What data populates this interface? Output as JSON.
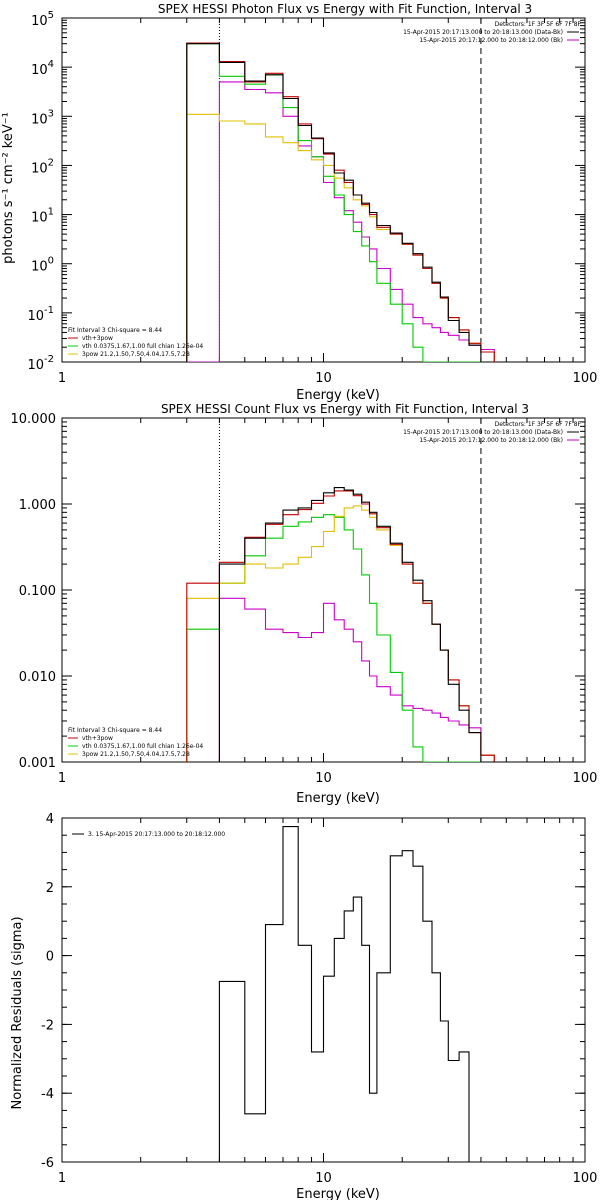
{
  "colors": {
    "total": "#c00000",
    "thermal": "#00cc00",
    "powerlaw": "#e0c000",
    "background": "#cc00cc",
    "data": "#000000",
    "axis": "#000000"
  },
  "chart_data": [
    {
      "type": "line",
      "title": "SPEX HESSI Photon Flux vs Energy with Fit Function, Interval 3",
      "xlabel": "Energy (keV)",
      "ylabel": "photons s⁻¹ cm⁻² keV⁻¹",
      "xscale": "log",
      "yscale": "log",
      "xlim": [
        1,
        100
      ],
      "ylim": [
        0.01,
        100000
      ],
      "xticks": [
        {
          "v": 1,
          "label": "1"
        },
        {
          "v": 10,
          "label": "10"
        },
        {
          "v": 100,
          "label": "100"
        }
      ],
      "yticks": [
        {
          "v": 0.01,
          "base": "10",
          "exp": "-2"
        },
        {
          "v": 0.1,
          "base": "10",
          "exp": "-1"
        },
        {
          "v": 1,
          "base": "10",
          "exp": "0"
        },
        {
          "v": 10,
          "base": "10",
          "exp": "1"
        },
        {
          "v": 100,
          "base": "10",
          "exp": "2"
        },
        {
          "v": 1000,
          "base": "10",
          "exp": "3"
        },
        {
          "v": 10000,
          "base": "10",
          "exp": "4"
        },
        {
          "v": 100000,
          "base": "10",
          "exp": "5"
        }
      ],
      "vlines": [
        {
          "x": 4.0,
          "style": "dotted"
        },
        {
          "x": 40.0,
          "style": "dashed"
        }
      ],
      "legend_top": {
        "header": "Detectors: 1F 3F 5F 6F 7F 8F",
        "entries": [
          {
            "text": "15-Apr-2015 20:17:13.000 to 20:18:13.000 (Data-Bk)",
            "color": "data"
          },
          {
            "text": "15-Apr-2015 20:17:12.000 to 20:18:12.000 (Bk)",
            "color": "background"
          }
        ]
      },
      "legend_bottom": {
        "header": "Fit Interval 3   Chi-square = 8.44",
        "entries": [
          {
            "text": "vth+3pow",
            "color": "total"
          },
          {
            "text": "vth 0.0375,1.67,1.00  full chian 1.26e-04",
            "color": "thermal"
          },
          {
            "text": "3pow 21.2,1.50,7.50,4.04,17.5,7.28",
            "color": "powerlaw"
          }
        ]
      },
      "edges": [
        3,
        4,
        5,
        6,
        7,
        8,
        9,
        10,
        11,
        12,
        13,
        14,
        15,
        16,
        18,
        20,
        22,
        24,
        26,
        28,
        30,
        33,
        36,
        40,
        45
      ],
      "series": [
        {
          "role": "background",
          "values": [
            0.01,
            5000,
            3500,
            3000,
            1000,
            250,
            150,
            45,
            22,
            12,
            7,
            3.5,
            2.0,
            0.8,
            0.3,
            0.15,
            0.08,
            0.06,
            0.05,
            0.04,
            0.035,
            0.028,
            0.022,
            0.018
          ]
        },
        {
          "role": "thermal",
          "values": [
            30000,
            6500,
            4500,
            7000,
            1500,
            320,
            150,
            60,
            25,
            10,
            4.5,
            2.3,
            1.1,
            0.4,
            0.15,
            0.06,
            0.02,
            0.01,
            0.01,
            0.01,
            0.01,
            0.01,
            0.01,
            0.01
          ]
        },
        {
          "role": "powerlaw",
          "values": [
            1100,
            800,
            700,
            380,
            290,
            200,
            130,
            100,
            55,
            35,
            20,
            15,
            9,
            5,
            4,
            2.5,
            1.5,
            0.8,
            0.4,
            0.2,
            0.08,
            0.045,
            0.024,
            0.016
          ]
        },
        {
          "role": "total",
          "values": [
            31000,
            13000,
            5000,
            7500,
            2500,
            700,
            350,
            170,
            80,
            45,
            25,
            16,
            10,
            5.5,
            4,
            2.5,
            1.5,
            0.8,
            0.4,
            0.2,
            0.08,
            0.045,
            0.024,
            0.016
          ]
        },
        {
          "role": "data",
          "values": [
            30000,
            12500,
            5200,
            7000,
            2300,
            650,
            360,
            180,
            70,
            50,
            25,
            17,
            11,
            6,
            4.2,
            2.6,
            1.6,
            0.85,
            0.42,
            0.21,
            0.07,
            0.04,
            0.022,
            0.01
          ]
        }
      ]
    },
    {
      "type": "line",
      "title": "SPEX HESSI Count Flux vs Energy with Fit Function, Interval 3",
      "xlabel": "Energy (keV)",
      "ylabel": "",
      "xscale": "log",
      "yscale": "log",
      "xlim": [
        1,
        100
      ],
      "ylim": [
        0.001,
        10
      ],
      "xticks": [
        {
          "v": 1,
          "label": "1"
        },
        {
          "v": 10,
          "label": "10"
        },
        {
          "v": 100,
          "label": "100"
        }
      ],
      "yticks": [
        {
          "v": 0.001,
          "label": "0.001"
        },
        {
          "v": 0.01,
          "label": "0.010"
        },
        {
          "v": 0.1,
          "label": "0.100"
        },
        {
          "v": 1,
          "label": "1.000"
        },
        {
          "v": 10,
          "label": "10.000"
        }
      ],
      "vlines": [
        {
          "x": 4.0,
          "style": "dotted"
        },
        {
          "x": 40.0,
          "style": "dashed"
        }
      ],
      "legend_top": {
        "header": "Detectors: 1F 3F 5F 6F 7F 8F",
        "entries": [
          {
            "text": "15-Apr-2015 20:17:13.000 to 20:18:13.000 (Data-Bk)",
            "color": "data"
          },
          {
            "text": "15-Apr-2015 20:17:12.000 to 20:18:12.000 (Bk)",
            "color": "background"
          }
        ]
      },
      "legend_bottom": {
        "header": "Fit Interval 3   Chi-square = 8.44",
        "entries": [
          {
            "text": "vth+3pow",
            "color": "total"
          },
          {
            "text": "vth 0.0375,1.67,1.00  full chian 1.26e-04",
            "color": "thermal"
          },
          {
            "text": "3pow 21.2,1.50,7.50,4.04,17.5,7.28",
            "color": "powerlaw"
          }
        ]
      },
      "edges": [
        3,
        4,
        5,
        6,
        7,
        8,
        9,
        10,
        11,
        12,
        13,
        14,
        15,
        16,
        18,
        20,
        22,
        24,
        26,
        28,
        30,
        33,
        36,
        40,
        45,
        50
      ],
      "series": [
        {
          "role": "background",
          "values": [
            0.001,
            0.08,
            0.06,
            0.035,
            0.032,
            0.028,
            0.032,
            0.07,
            0.045,
            0.035,
            0.025,
            0.015,
            0.01,
            0.0075,
            0.006,
            0.0045,
            0.0042,
            0.004,
            0.0037,
            0.0033,
            0.003,
            0.0027,
            0.0025,
            0.0012,
            0.001
          ]
        },
        {
          "role": "thermal",
          "values": [
            0.035,
            0.12,
            0.25,
            0.4,
            0.55,
            0.62,
            0.7,
            0.75,
            0.7,
            0.5,
            0.3,
            0.15,
            0.07,
            0.03,
            0.011,
            0.004,
            0.0015,
            0.001,
            0.001,
            0.001,
            0.001,
            0.001,
            0.001,
            0.001,
            0.001
          ]
        },
        {
          "role": "powerlaw",
          "values": [
            0.08,
            0.12,
            0.2,
            0.18,
            0.2,
            0.24,
            0.32,
            0.48,
            0.72,
            0.9,
            0.95,
            0.85,
            0.7,
            0.5,
            0.33,
            0.2,
            0.12,
            0.07,
            0.04,
            0.02,
            0.009,
            0.0045,
            0.0022,
            0.0012,
            0.001
          ]
        },
        {
          "role": "total",
          "values": [
            0.12,
            0.21,
            0.41,
            0.58,
            0.75,
            0.86,
            1.02,
            1.24,
            1.42,
            1.42,
            1.25,
            1.0,
            0.77,
            0.53,
            0.34,
            0.2,
            0.12,
            0.07,
            0.04,
            0.02,
            0.009,
            0.0045,
            0.0022,
            0.0012,
            0.001
          ]
        },
        {
          "role": "data",
          "values": [
            0.001,
            0.2,
            0.4,
            0.6,
            0.85,
            0.9,
            1.1,
            1.35,
            1.55,
            1.45,
            1.3,
            1.05,
            0.8,
            0.55,
            0.35,
            0.21,
            0.13,
            0.075,
            0.04,
            0.02,
            0.008,
            0.004,
            0.0022,
            0.001,
            0.001
          ]
        }
      ]
    },
    {
      "type": "line",
      "title": "",
      "xlabel": "Energy (keV)",
      "ylabel": "Normalized Residuals (sigma)",
      "xscale": "log",
      "yscale": "linear",
      "xlim": [
        1,
        100
      ],
      "ylim": [
        -6,
        4
      ],
      "xticks": [
        {
          "v": 1,
          "label": "1"
        },
        {
          "v": 10,
          "label": "10"
        },
        {
          "v": 100,
          "label": "100"
        }
      ],
      "yticks": [
        {
          "v": -6,
          "label": "-6"
        },
        {
          "v": -4,
          "label": "-4"
        },
        {
          "v": -2,
          "label": "-2"
        },
        {
          "v": 0,
          "label": "0"
        },
        {
          "v": 2,
          "label": "2"
        },
        {
          "v": 4,
          "label": "4"
        }
      ],
      "vlines": [],
      "legend_top": {
        "header": "",
        "entries": [
          {
            "text": "3. 15-Apr-2015 20:17:13.000 to 20:18:12.000",
            "color": "data"
          }
        ]
      },
      "legend_bottom": {
        "header": "",
        "entries": []
      },
      "edges": [
        4,
        5,
        6,
        7,
        8,
        9,
        10,
        11,
        12,
        13,
        14,
        15,
        16,
        18,
        20,
        22,
        24,
        26,
        28,
        30,
        33,
        36,
        40
      ],
      "series": [
        {
          "role": "data",
          "values": [
            -0.75,
            -4.6,
            0.9,
            3.75,
            0.3,
            -2.8,
            -0.6,
            0.5,
            1.3,
            1.7,
            0.3,
            -4.0,
            -0.5,
            2.9,
            3.05,
            2.6,
            1.0,
            -0.5,
            -1.9,
            -3.05,
            -2.8
          ]
        }
      ]
    }
  ]
}
